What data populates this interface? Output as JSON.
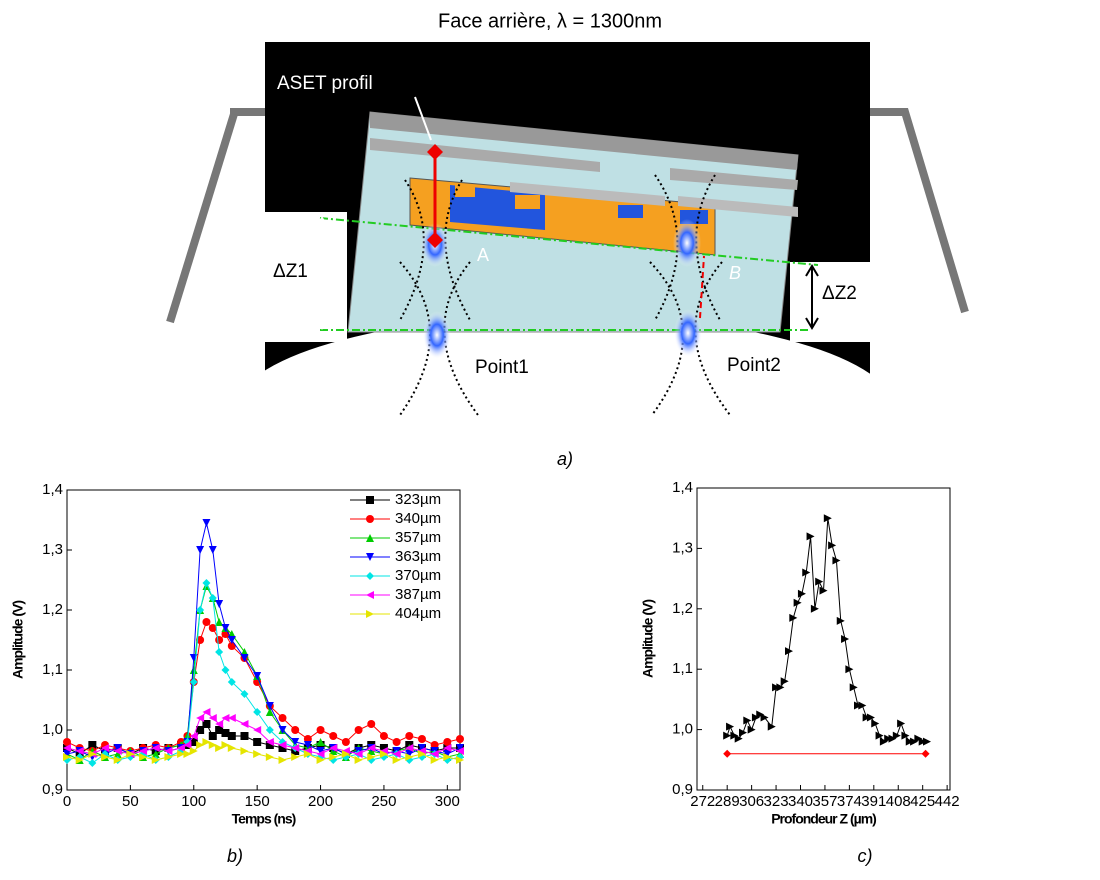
{
  "figure": {
    "title": "Face arrière, λ = 1300nm",
    "caption_a": "a)",
    "caption_b": "b)",
    "caption_c": "c)"
  },
  "diagram": {
    "aset": "ASET profil",
    "dz1": "ΔZ1",
    "dz2": "ΔZ2",
    "a": "A",
    "b": "B",
    "point1": "Point1",
    "point2": "Point2"
  },
  "chart_data": [
    {
      "type": "line",
      "x_label": "Temps (ns)",
      "y_label": "Amplitude (V)",
      "legend": "upper right",
      "xlim": [
        0,
        310
      ],
      "xticks": [
        0,
        50,
        100,
        150,
        200,
        250,
        300
      ],
      "ylim": [
        0.9,
        1.4
      ],
      "yticks": [
        {
          "value": 0.9,
          "label": "0,9"
        },
        {
          "value": 1.0,
          "label": "1,0"
        },
        {
          "value": 1.1,
          "label": "1,1"
        },
        {
          "value": 1.2,
          "label": "1,2"
        },
        {
          "value": 1.3,
          "label": "1,3"
        },
        {
          "value": 1.4,
          "label": "1,4"
        }
      ],
      "x": [
        0,
        10,
        20,
        30,
        40,
        50,
        60,
        70,
        80,
        90,
        95,
        100,
        105,
        110,
        115,
        120,
        125,
        130,
        140,
        150,
        160,
        170,
        180,
        190,
        200,
        210,
        220,
        230,
        240,
        250,
        260,
        270,
        280,
        290,
        300,
        310
      ],
      "series": [
        {
          "name": "323µm",
          "color": "#000000",
          "marker": "square",
          "values": [
            0.97,
            0.96,
            0.975,
            0.965,
            0.97,
            0.96,
            0.97,
            0.965,
            0.97,
            0.975,
            0.975,
            0.98,
            1.0,
            1.01,
            0.99,
            1.0,
            0.995,
            0.99,
            0.99,
            0.98,
            0.975,
            0.97,
            0.965,
            0.97,
            0.975,
            0.97,
            0.96,
            0.97,
            0.975,
            0.97,
            0.965,
            0.975,
            0.97,
            0.965,
            0.97,
            0.97
          ]
        },
        {
          "name": "340µm",
          "color": "#ff0000",
          "marker": "circle",
          "values": [
            0.98,
            0.97,
            0.965,
            0.975,
            0.97,
            0.965,
            0.97,
            0.975,
            0.97,
            0.98,
            0.99,
            1.08,
            1.15,
            1.18,
            1.17,
            1.15,
            1.16,
            1.14,
            1.12,
            1.08,
            1.04,
            1.02,
            1.0,
            0.985,
            1.0,
            0.99,
            0.98,
            1.0,
            1.01,
            0.99,
            0.98,
            0.99,
            0.985,
            0.975,
            0.98,
            0.985
          ]
        },
        {
          "name": "357µm",
          "color": "#00cc00",
          "marker": "triangle-up",
          "values": [
            0.96,
            0.95,
            0.965,
            0.955,
            0.96,
            0.965,
            0.955,
            0.96,
            0.97,
            0.975,
            0.99,
            1.1,
            1.2,
            1.24,
            1.22,
            1.18,
            1.17,
            1.16,
            1.13,
            1.09,
            1.03,
            1.0,
            0.975,
            0.97,
            0.98,
            0.965,
            0.955,
            0.97,
            0.965,
            0.96,
            0.965,
            0.97,
            0.96,
            0.965,
            0.955,
            0.96
          ]
        },
        {
          "name": "363µm",
          "color": "#0000ff",
          "marker": "triangle-down",
          "values": [
            0.96,
            0.965,
            0.955,
            0.96,
            0.97,
            0.96,
            0.965,
            0.97,
            0.965,
            0.97,
            0.98,
            1.12,
            1.3,
            1.345,
            1.3,
            1.21,
            1.17,
            1.15,
            1.12,
            1.09,
            1.04,
            1.0,
            0.98,
            0.975,
            0.965,
            0.97,
            0.96,
            0.965,
            0.97,
            0.96,
            0.965,
            0.96,
            0.97,
            0.965,
            0.96,
            0.97
          ]
        },
        {
          "name": "370µm",
          "color": "#00e5e5",
          "marker": "diamond",
          "values": [
            0.95,
            0.955,
            0.945,
            0.96,
            0.95,
            0.955,
            0.96,
            0.95,
            0.955,
            0.965,
            0.98,
            1.08,
            1.2,
            1.245,
            1.22,
            1.13,
            1.1,
            1.08,
            1.06,
            1.03,
            1.0,
            0.98,
            0.97,
            0.96,
            0.955,
            0.95,
            0.955,
            0.96,
            0.95,
            0.955,
            0.96,
            0.95,
            0.955,
            0.96,
            0.95,
            0.955
          ]
        },
        {
          "name": "387µm",
          "color": "#ff00ff",
          "marker": "triangle-left",
          "values": [
            0.97,
            0.965,
            0.96,
            0.97,
            0.965,
            0.96,
            0.965,
            0.97,
            0.965,
            0.97,
            0.975,
            0.99,
            1.02,
            1.03,
            1.02,
            1.01,
            1.02,
            1.02,
            1.01,
            1.0,
            0.98,
            0.975,
            0.97,
            0.965,
            0.96,
            0.97,
            0.965,
            0.96,
            0.97,
            0.965,
            0.96,
            0.97,
            0.965,
            0.96,
            0.97,
            0.965
          ]
        },
        {
          "name": "404µm",
          "color": "#e5e500",
          "marker": "triangle-right",
          "values": [
            0.955,
            0.95,
            0.96,
            0.955,
            0.95,
            0.96,
            0.955,
            0.95,
            0.955,
            0.96,
            0.96,
            0.965,
            0.975,
            0.98,
            0.975,
            0.97,
            0.975,
            0.97,
            0.965,
            0.96,
            0.955,
            0.95,
            0.955,
            0.96,
            0.95,
            0.955,
            0.96,
            0.95,
            0.955,
            0.96,
            0.95,
            0.955,
            0.96,
            0.95,
            0.955,
            0.95
          ]
        }
      ]
    },
    {
      "type": "line",
      "x_label": "Profondeur Z (µm)",
      "y_label": "Amplitude (V)",
      "xlim": [
        268,
        444
      ],
      "xticks": [
        272,
        289,
        306,
        323,
        340,
        357,
        374,
        391,
        408,
        425,
        442
      ],
      "ylim": [
        0.9,
        1.4
      ],
      "yticks": [
        {
          "value": 0.9,
          "label": "0,9"
        },
        {
          "value": 1.0,
          "label": "1,0"
        },
        {
          "value": 1.1,
          "label": "1,1"
        },
        {
          "value": 1.2,
          "label": "1,2"
        },
        {
          "value": 1.3,
          "label": "1,3"
        },
        {
          "value": 1.4,
          "label": "1,4"
        }
      ],
      "series": [
        {
          "color": "#000000",
          "marker": "triangle-right",
          "x": [
            289,
            291,
            294,
            297,
            300,
            303,
            306,
            309,
            312,
            315,
            320,
            323,
            326,
            329,
            332,
            335,
            338,
            341,
            344,
            347,
            350,
            353,
            356,
            359,
            362,
            365,
            368,
            371,
            374,
            377,
            380,
            383,
            386,
            389,
            392,
            395,
            398,
            401,
            404,
            407,
            410,
            413,
            416,
            419,
            422,
            425,
            428
          ],
          "values": [
            0.99,
            1.005,
            0.99,
            0.985,
            0.995,
            1.015,
            1.0,
            1.02,
            1.025,
            1.02,
            1.005,
            1.07,
            1.07,
            1.08,
            1.13,
            1.185,
            1.21,
            1.225,
            1.26,
            1.32,
            1.2,
            1.245,
            1.23,
            1.35,
            1.305,
            1.28,
            1.18,
            1.15,
            1.1,
            1.07,
            1.04,
            1.04,
            1.02,
            1.02,
            1.01,
            0.99,
            0.98,
            0.985,
            0.985,
            0.99,
            1.01,
            0.99,
            0.98,
            0.98,
            0.985,
            0.98,
            0.98
          ]
        },
        {
          "color": "#ff0000",
          "marker": "diamond",
          "x": [
            289,
            427
          ],
          "values": [
            0.96,
            0.96
          ]
        }
      ]
    }
  ]
}
